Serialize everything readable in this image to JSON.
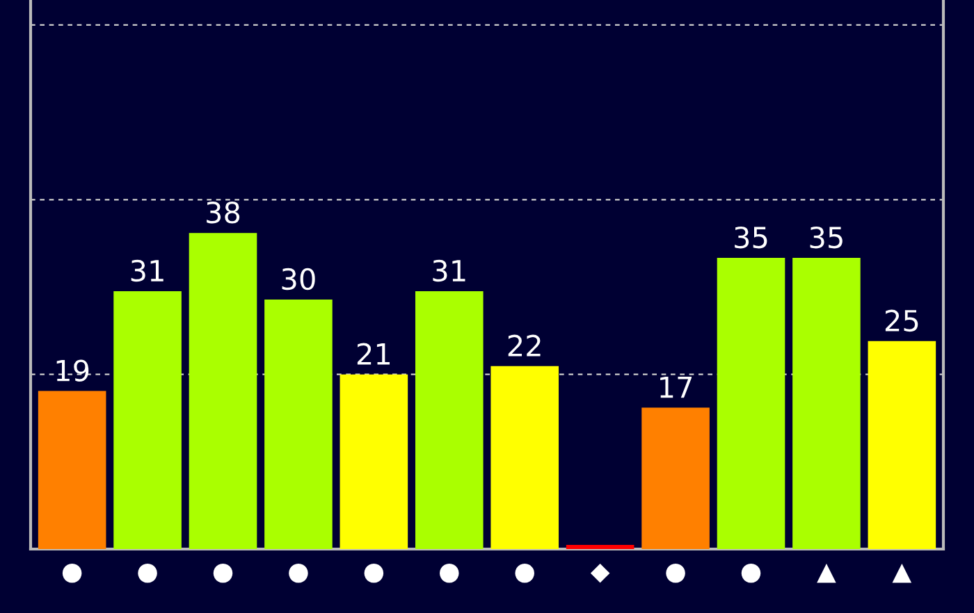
{
  "chart_data": {
    "type": "bar",
    "categories": [
      "●",
      "●",
      "●",
      "●",
      "●",
      "●",
      "●",
      "◆",
      "●",
      "●",
      "▲",
      "▲"
    ],
    "values": [
      19,
      31,
      38,
      30,
      21,
      31,
      22,
      0.5,
      17,
      35,
      35,
      25
    ],
    "value_labels": [
      "19",
      "31",
      "38",
      "30",
      "21",
      "31",
      "22",
      null,
      "17",
      "35",
      "35",
      "25"
    ],
    "colors": [
      "#ff8000",
      "#aaff00",
      "#aaff00",
      "#aaff00",
      "#ffff00",
      "#aaff00",
      "#ffff00",
      "#ff0000",
      "#ff8000",
      "#aaff00",
      "#aaff00",
      "#ffff00"
    ],
    "ylim": [
      0,
      66
    ],
    "yticks": [
      {
        "value": 21,
        "label": null
      },
      {
        "value": 42,
        "label": null
      },
      {
        "value": 63,
        "label": null
      }
    ],
    "grid": "y",
    "tick_labels": "x"
  }
}
